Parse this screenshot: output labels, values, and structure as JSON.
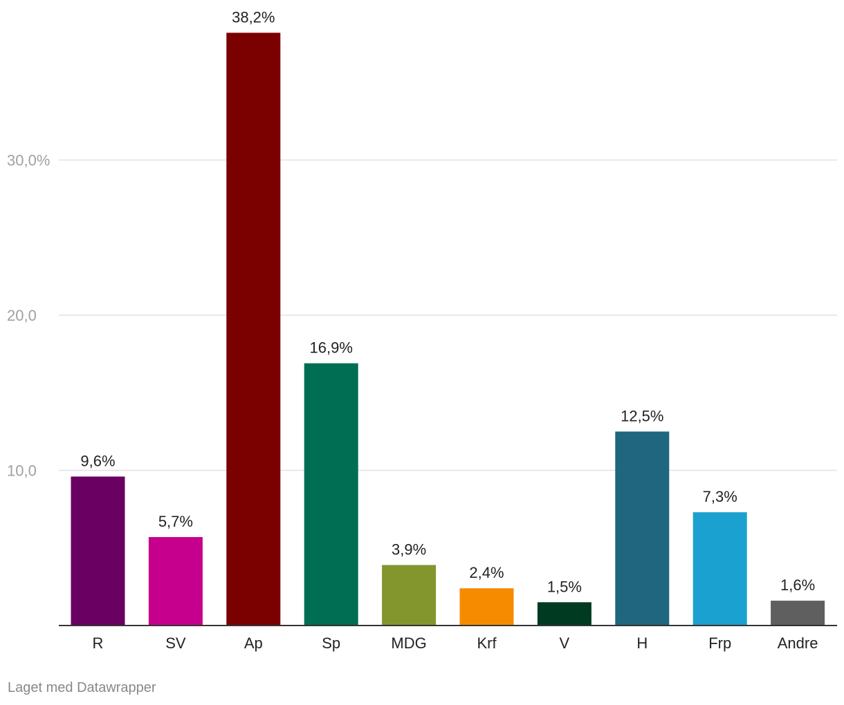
{
  "chart_data": {
    "type": "bar",
    "categories": [
      "R",
      "SV",
      "Ap",
      "Sp",
      "MDG",
      "Krf",
      "V",
      "H",
      "Frp",
      "Andre"
    ],
    "values": [
      9.6,
      5.7,
      38.2,
      16.9,
      3.9,
      2.4,
      1.5,
      12.5,
      7.3,
      1.6
    ],
    "value_labels": [
      "9,6%",
      "5,7%",
      "38,2%",
      "16,9%",
      "3,9%",
      "2,4%",
      "1,5%",
      "12,5%",
      "7,3%",
      "1,6%"
    ],
    "colors": [
      "#6a0062",
      "#c6008d",
      "#7b0000",
      "#006e52",
      "#83962e",
      "#f68b00",
      "#003a20",
      "#1f667e",
      "#1ba1cf",
      "#5f5f5f"
    ],
    "y_ticks": [
      {
        "value": 10,
        "label": "10,0"
      },
      {
        "value": 20,
        "label": "20,0"
      },
      {
        "value": 30,
        "label": "30,0%"
      }
    ],
    "ylim": [
      0,
      38.2
    ],
    "grid": true,
    "title": "",
    "xlabel": "",
    "ylabel": ""
  },
  "footer": {
    "credit": "Laget med Datawrapper"
  }
}
